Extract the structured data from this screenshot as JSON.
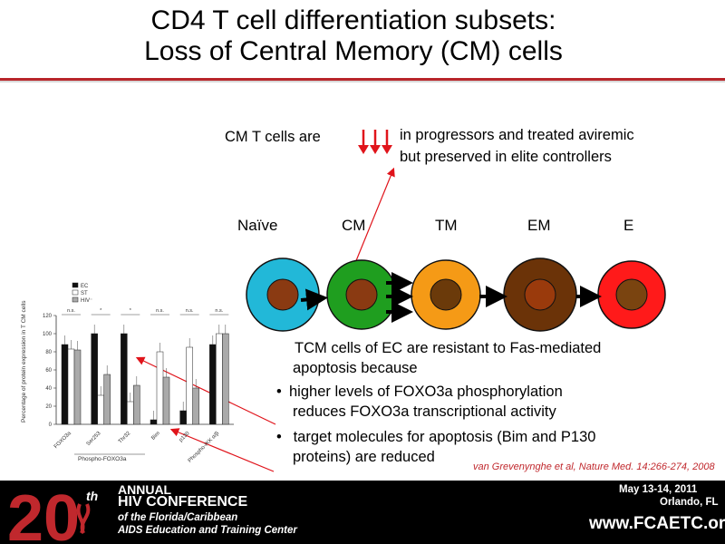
{
  "title": {
    "line1": "CD4 T cell differentiation subsets:",
    "line2": "Loss of Central Memory  (CM) cells"
  },
  "statement": {
    "prefix": "CM T cells are",
    "line1": "in progressors and treated aviremic",
    "line2": "but preserved in elite controllers"
  },
  "stages": [
    "Naïve",
    "CM",
    "TM",
    "EM",
    "E"
  ],
  "colors": {
    "accent": "#c0282d",
    "naive": "#22b8d8",
    "cm": "#1f9e1f",
    "tm": "#f59a16",
    "em": "#6b3308",
    "e": "#ff1a1a",
    "nucleus": "#8a3a12",
    "arrow_red": "#e0141b"
  },
  "text_block": {
    "intro_line1": "TCM cells of EC are resistant to Fas-mediated",
    "intro_line2": "apoptosis because",
    "bullet1_line1": "higher levels  of FOXO3a phosphorylation",
    "bullet1_line2": "reduces FOXO3a transcriptional activity",
    "bullet2_line1": " target molecules  for apoptosis (Bim and P130",
    "bullet2_line2": "proteins) are reduced"
  },
  "citation": "van Grevenynghe et al, Nature Med. 14:266-274, 2008",
  "footer": {
    "number": "20",
    "superscript": "th",
    "line1": "ANNUAL",
    "line2": "HIV CONFERENCE",
    "line3": "of the Florida/Caribbean",
    "line4": "AIDS Education and Training Center",
    "dates": "May 13-14, 2011",
    "location": "Orlando, FL",
    "website": "www.FCAETC.org"
  },
  "chart_data": {
    "type": "bar",
    "ylabel": "Percentage of protein expression in T CM cells",
    "ylim": [
      0,
      120
    ],
    "yticks": [
      0,
      20,
      40,
      60,
      80,
      100,
      120
    ],
    "categories": [
      "FOXO3a",
      "Ser253",
      "Thr32",
      "Bim",
      "p130",
      "Phospho-IKK α/β"
    ],
    "group_label": "Phospho-FOXO3a",
    "legend": [
      "EC",
      "ST",
      "HIV⁻"
    ],
    "series": [
      {
        "name": "EC",
        "color": "#111111",
        "values": [
          88,
          100,
          100,
          5,
          15,
          88
        ]
      },
      {
        "name": "ST",
        "color": "#ffffff",
        "values": [
          83,
          32,
          25,
          80,
          85,
          100
        ]
      },
      {
        "name": "HIV⁻",
        "color": "#aaaaaa",
        "values": [
          82,
          55,
          43,
          52,
          40,
          100
        ]
      }
    ],
    "significance": [
      "n.s.",
      "*",
      "*",
      "n.s.",
      "n.s.",
      "n.s."
    ]
  }
}
